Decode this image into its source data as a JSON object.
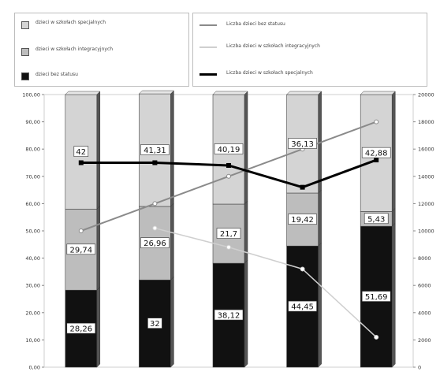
{
  "chart_data": {
    "type": "bar",
    "stacked": true,
    "categories": [
      "",
      "",
      "",
      "",
      ""
    ],
    "legend_bars": [
      {
        "key": "a",
        "name": "dzieci w szkołach specjalnych",
        "color": "#d4d4d4"
      },
      {
        "key": "b",
        "name": "dzieci w szkołach integracyjnych",
        "color": "#bdbdbd"
      },
      {
        "key": "c",
        "name": "dzieci bez statusu",
        "color": "#111111"
      }
    ],
    "legend_lines": [
      {
        "key": "l1",
        "name": "Liczba dzieci bez statusu",
        "color": "#8a8a8a"
      },
      {
        "key": "l2",
        "name": "Liczba dzieci w szkołach integracyjnych",
        "color": "#cfcfcf"
      },
      {
        "key": "l3",
        "name": "Liczba dzieci w szkołach specjalnych",
        "color": "#000000"
      }
    ],
    "series": [
      {
        "key": "c",
        "values": [
          28.26,
          32,
          38.12,
          44.45,
          51.69
        ]
      },
      {
        "key": "b",
        "values": [
          29.74,
          26.96,
          21.7,
          19.42,
          5.43
        ]
      },
      {
        "key": "a",
        "values": [
          42,
          41.31,
          40.19,
          36.13,
          42.88
        ]
      }
    ],
    "bar_labels": {
      "c": [
        "28,26",
        "32",
        "38,12",
        "44,45",
        "51,69"
      ],
      "b": [
        "29,74",
        "26,96",
        "21,7",
        "19,42",
        "5,43"
      ],
      "a": [
        "42",
        "41,31",
        "40,19",
        "36,13",
        "42,88"
      ]
    },
    "lines": [
      {
        "key": "l1",
        "values": [
          10000,
          12000,
          14000,
          16000,
          18000
        ]
      },
      {
        "key": "l2",
        "values": [
          null,
          10200,
          8800,
          7200,
          2200
        ]
      },
      {
        "key": "l3",
        "values": [
          15000,
          15000,
          14800,
          13200,
          15200
        ]
      }
    ],
    "y_left": {
      "min": 0,
      "max": 100,
      "ticks": [
        "0,00",
        "10,00",
        "20,00",
        "30,00",
        "40,00",
        "50,00",
        "60,00",
        "70,00",
        "80,00",
        "90,00",
        "100,00"
      ]
    },
    "y_right": {
      "min": 0,
      "max": 20000,
      "ticks": [
        "0",
        "2000",
        "4000",
        "6000",
        "8000",
        "10000",
        "12000",
        "14000",
        "16000",
        "18000",
        "20000"
      ]
    },
    "grid": false,
    "legend_position": "top"
  }
}
